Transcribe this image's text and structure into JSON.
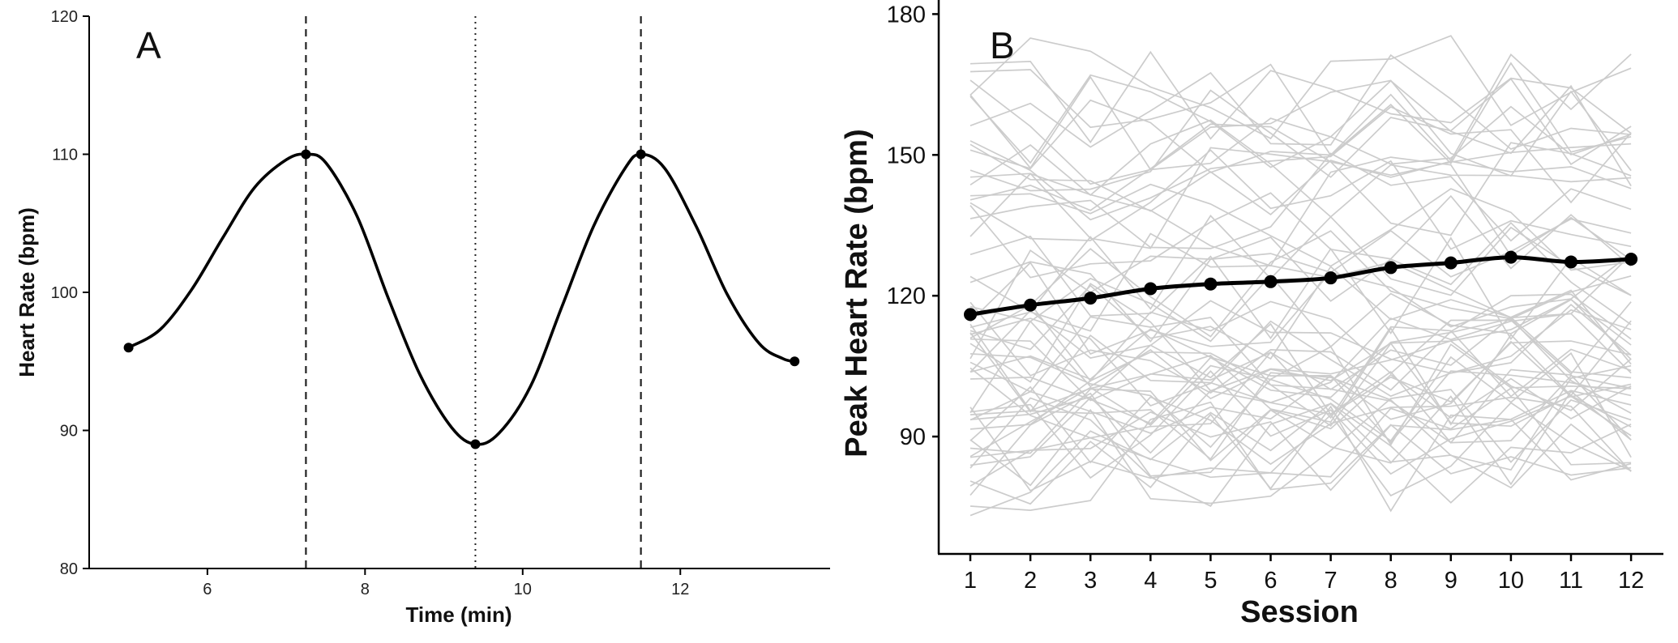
{
  "chart_data": [
    {
      "panel": "A",
      "type": "line",
      "panel_label": "A",
      "xlabel": "Time (min)",
      "ylabel": "Heart Rate (bpm)",
      "xlim": [
        4.5,
        13.9
      ],
      "ylim": [
        80,
        120
      ],
      "xticks": [
        6,
        8,
        10,
        12
      ],
      "yticks": [
        80,
        90,
        100,
        110,
        120
      ],
      "grid": false,
      "series": [
        {
          "name": "heart-rate-curve",
          "x": [
            5.0,
            5.4,
            5.8,
            6.2,
            6.6,
            7.0,
            7.25,
            7.5,
            7.9,
            8.3,
            8.7,
            9.1,
            9.4,
            9.7,
            10.1,
            10.5,
            10.9,
            11.3,
            11.5,
            11.8,
            12.2,
            12.6,
            13.0,
            13.3,
            13.45
          ],
          "y": [
            96,
            97.3,
            100.2,
            104,
            107.6,
            109.6,
            110,
            109.4,
            105.5,
            99.5,
            94,
            90.2,
            89,
            89.8,
            93.2,
            99,
            104.8,
            109,
            110,
            109,
            104.8,
            99.8,
            96.3,
            95.2,
            95
          ]
        }
      ],
      "markers": [
        {
          "x": 5.0,
          "y": 96
        },
        {
          "x": 7.25,
          "y": 110
        },
        {
          "x": 9.4,
          "y": 89
        },
        {
          "x": 11.5,
          "y": 110
        },
        {
          "x": 13.45,
          "y": 95
        }
      ],
      "vlines": [
        {
          "x": 7.25,
          "style": "dashed"
        },
        {
          "x": 9.4,
          "style": "dotted"
        },
        {
          "x": 11.5,
          "style": "dashed"
        }
      ]
    },
    {
      "panel": "B",
      "type": "line",
      "panel_label": "B",
      "xlabel": "Session",
      "ylabel": "Peak Heart Rate (bpm)",
      "categories": [
        1,
        2,
        3,
        4,
        5,
        6,
        7,
        8,
        9,
        10,
        11,
        12
      ],
      "ylim": [
        65,
        183
      ],
      "yticks": [
        90,
        120,
        150,
        180
      ],
      "grid": false,
      "mean_series": {
        "name": "Mean",
        "values": [
          116,
          118,
          119.5,
          121.5,
          122.5,
          123,
          123.8,
          126,
          127,
          128.2,
          127.2,
          127.8
        ]
      },
      "individual_series_count": 60,
      "individual_series_color": "#cccccc",
      "individual_value_range": [
        70,
        180
      ]
    }
  ]
}
